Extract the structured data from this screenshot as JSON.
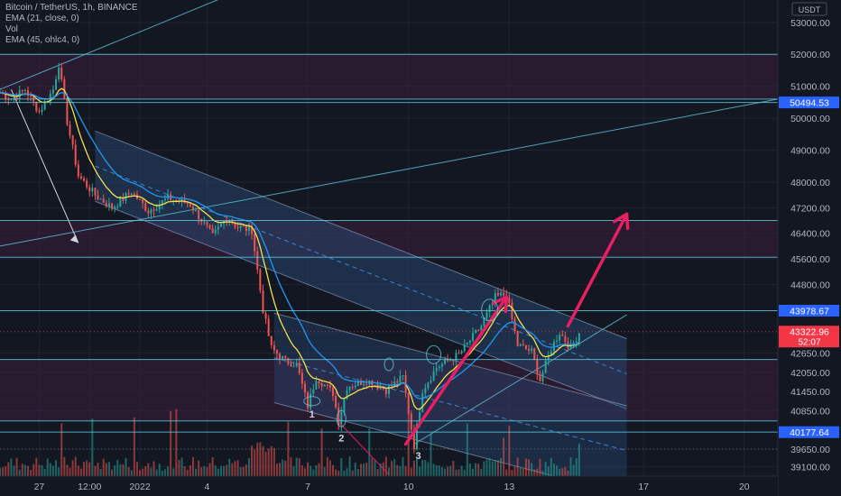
{
  "header": {
    "symbol_line": "Bitcoin / TetherUS, 1h, BINANCE",
    "indicator_1": "EMA (21, close, 0)",
    "indicator_2": "Vol",
    "indicator_3": "EMA (45, ohlc4, 0)"
  },
  "currency_label": "USDT",
  "colors": {
    "background": "#131722",
    "grid": "#1e2433",
    "up": "#26a69a",
    "down": "#ef5350",
    "ema21": "#f5e04a",
    "ema45": "#2196f3",
    "level": "#5ec4d9",
    "channel_fill": "#2a4d7a",
    "zone_fill": "#3a1f3d",
    "arrow": "#e91e63",
    "marker_current": "#f23645",
    "marker_level": "#2962ff"
  },
  "chart_data": {
    "type": "candlestick",
    "ylim": [
      38800,
      53700
    ],
    "y_ticks": [
      53000,
      52000,
      51000,
      50000,
      49000,
      48000,
      47200,
      46400,
      45600,
      44800,
      42650,
      42050,
      41450,
      40850,
      39650,
      39100
    ],
    "y_tick_labels": [
      "53000.00",
      "52000.00",
      "51000.00",
      "50000.00",
      "49000.00",
      "48000.00",
      "47200.00",
      "46400.00",
      "45600.00",
      "44800.00",
      "42650.00",
      "42050.00",
      "41450.00",
      "40850.00",
      "39650.00",
      "39100.00"
    ],
    "x_ticks": [
      {
        "label": "27",
        "t": 0
      },
      {
        "label": "12:00",
        "t": 36
      },
      {
        "label": "2022",
        "t": 72
      },
      {
        "label": "4",
        "t": 120
      },
      {
        "label": "7",
        "t": 192
      },
      {
        "label": "10",
        "t": 264
      },
      {
        "label": "13",
        "t": 336
      },
      {
        "label": "17",
        "t": 432
      },
      {
        "label": "20",
        "t": 504
      }
    ],
    "t_range": [
      -28,
      528
    ],
    "horizontal_levels": [
      52000,
      50600,
      50494.53,
      46800,
      45650,
      43978.67,
      42450,
      40530,
      40177.64
    ],
    "price_markers": [
      {
        "label": "50494.53",
        "price": 50494.53,
        "kind": "level"
      },
      {
        "label": "43978.67",
        "price": 43978.67,
        "kind": "level"
      },
      {
        "label": "43322.96",
        "sub": "52:07",
        "price": 43322.96,
        "kind": "current"
      },
      {
        "label": "40177.64",
        "price": 40177.64,
        "kind": "level"
      }
    ],
    "anchors": [
      {
        "t": -28,
        "p": 50800
      },
      {
        "t": -20,
        "p": 50600
      },
      {
        "t": -10,
        "p": 50900
      },
      {
        "t": 0,
        "p": 50200
      },
      {
        "t": 10,
        "p": 50900
      },
      {
        "t": 14,
        "p": 51700
      },
      {
        "t": 20,
        "p": 49900
      },
      {
        "t": 28,
        "p": 48200
      },
      {
        "t": 40,
        "p": 47600
      },
      {
        "t": 52,
        "p": 47200
      },
      {
        "t": 66,
        "p": 47700
      },
      {
        "t": 78,
        "p": 47100
      },
      {
        "t": 92,
        "p": 47500
      },
      {
        "t": 108,
        "p": 47300
      },
      {
        "t": 118,
        "p": 46700
      },
      {
        "t": 124,
        "p": 46300
      },
      {
        "t": 134,
        "p": 46900
      },
      {
        "t": 142,
        "p": 46600
      },
      {
        "t": 152,
        "p": 46500
      },
      {
        "t": 160,
        "p": 44000
      },
      {
        "t": 166,
        "p": 42800
      },
      {
        "t": 176,
        "p": 42400
      },
      {
        "t": 184,
        "p": 42300
      },
      {
        "t": 192,
        "p": 41000
      },
      {
        "t": 198,
        "p": 41900
      },
      {
        "t": 210,
        "p": 41400
      },
      {
        "t": 214,
        "p": 40500
      },
      {
        "t": 220,
        "p": 41600
      },
      {
        "t": 234,
        "p": 41800
      },
      {
        "t": 248,
        "p": 41500
      },
      {
        "t": 260,
        "p": 41900
      },
      {
        "t": 268,
        "p": 39750
      },
      {
        "t": 274,
        "p": 41500
      },
      {
        "t": 284,
        "p": 42200
      },
      {
        "t": 300,
        "p": 42600
      },
      {
        "t": 316,
        "p": 43500
      },
      {
        "t": 326,
        "p": 44400
      },
      {
        "t": 334,
        "p": 44500
      },
      {
        "t": 342,
        "p": 42900
      },
      {
        "t": 352,
        "p": 42700
      },
      {
        "t": 358,
        "p": 41800
      },
      {
        "t": 366,
        "p": 42800
      },
      {
        "t": 372,
        "p": 43300
      },
      {
        "t": 380,
        "p": 42800
      },
      {
        "t": 386,
        "p": 43300
      }
    ],
    "channels": [
      {
        "t1": 40,
        "p1": 49600,
        "t2": 420,
        "p2": 43100,
        "width": 2200
      },
      {
        "t1": 168,
        "p1": 43900,
        "t2": 420,
        "p2": 41000,
        "width": 2800
      }
    ],
    "arrows": [
      {
        "t1": 262,
        "p1": 39800,
        "t2": 334,
        "p2": 44400,
        "color": "arrow"
      },
      {
        "t1": 378,
        "p1": 43500,
        "t2": 420,
        "p2": 47000,
        "color": "arrow"
      }
    ],
    "annotations": [
      {
        "label": "1",
        "t": 195,
        "p": 40750
      },
      {
        "label": "2",
        "t": 216,
        "p": 40000
      },
      {
        "label": "3",
        "t": 271,
        "p": 39450
      }
    ]
  }
}
